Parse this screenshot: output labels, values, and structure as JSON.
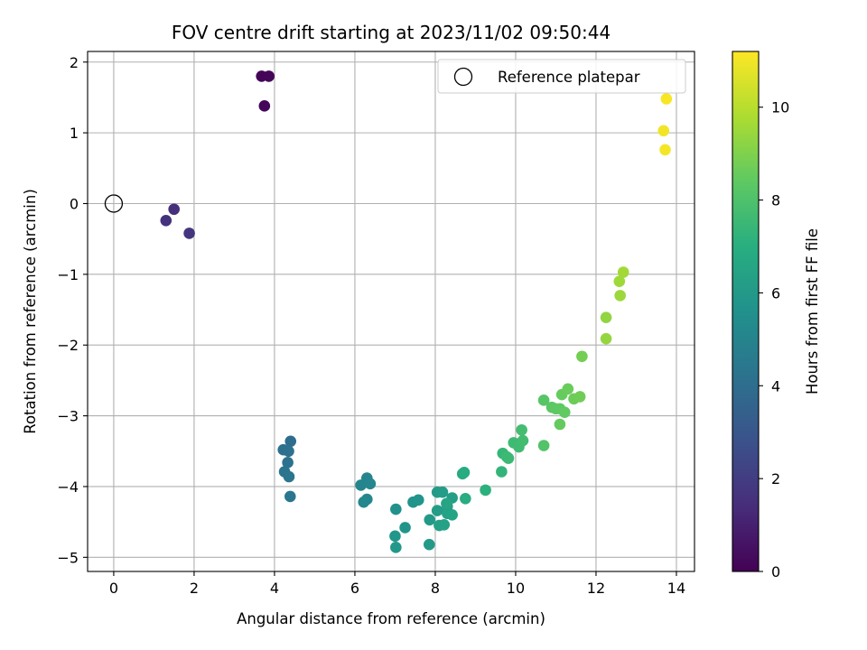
{
  "chart_data": {
    "type": "scatter",
    "title": "FOV centre drift starting at 2023/11/02 09:50:44",
    "xlabel": "Angular distance from reference (arcmin)",
    "ylabel": "Rotation from reference (arcmin)",
    "xlim": [
      -0.65,
      14.45
    ],
    "ylim": [
      -5.2,
      2.15
    ],
    "xticks": [
      0,
      2,
      4,
      6,
      8,
      10,
      12,
      14
    ],
    "yticks": [
      2,
      1,
      0,
      -1,
      -2,
      -3,
      -4,
      -5
    ],
    "grid": true,
    "colorbar": {
      "label": "Hours from first FF file",
      "range": [
        0,
        11.2
      ],
      "ticks": [
        0,
        2,
        4,
        6,
        8,
        10
      ],
      "colormap": "viridis"
    },
    "legend": {
      "position": "top-right",
      "entries": [
        {
          "label": "Reference platepar",
          "marker": "hollow-circle"
        }
      ]
    },
    "reference_point": {
      "x": 0,
      "y": 0
    },
    "series": [
      {
        "points": [
          {
            "x": 3.68,
            "y": 1.8,
            "c": 0.1
          },
          {
            "x": 3.86,
            "y": 1.8,
            "c": 0.15
          },
          {
            "x": 3.75,
            "y": 1.38,
            "c": 0.2
          },
          {
            "x": 1.5,
            "y": -0.08,
            "c": 1.5
          },
          {
            "x": 1.3,
            "y": -0.24,
            "c": 1.6
          },
          {
            "x": 1.88,
            "y": -0.42,
            "c": 1.7
          },
          {
            "x": 4.4,
            "y": -3.36,
            "c": 4.0
          },
          {
            "x": 4.22,
            "y": -3.48,
            "c": 4.1
          },
          {
            "x": 4.35,
            "y": -3.5,
            "c": 4.15
          },
          {
            "x": 4.33,
            "y": -3.66,
            "c": 4.2
          },
          {
            "x": 4.25,
            "y": -3.79,
            "c": 4.3
          },
          {
            "x": 4.36,
            "y": -3.86,
            "c": 4.35
          },
          {
            "x": 4.39,
            "y": -4.14,
            "c": 4.4
          },
          {
            "x": 6.3,
            "y": -3.88,
            "c": 5.0
          },
          {
            "x": 6.15,
            "y": -3.98,
            "c": 5.05
          },
          {
            "x": 6.38,
            "y": -3.96,
            "c": 5.1
          },
          {
            "x": 6.3,
            "y": -4.18,
            "c": 5.15
          },
          {
            "x": 6.22,
            "y": -4.22,
            "c": 5.2
          },
          {
            "x": 7.02,
            "y": -4.32,
            "c": 5.6
          },
          {
            "x": 7.45,
            "y": -4.22,
            "c": 5.7
          },
          {
            "x": 7.58,
            "y": -4.19,
            "c": 5.75
          },
          {
            "x": 7.25,
            "y": -4.58,
            "c": 5.8
          },
          {
            "x": 7.0,
            "y": -4.7,
            "c": 5.85
          },
          {
            "x": 7.02,
            "y": -4.86,
            "c": 5.9
          },
          {
            "x": 7.85,
            "y": -4.82,
            "c": 6.0
          },
          {
            "x": 7.86,
            "y": -4.47,
            "c": 6.05
          },
          {
            "x": 8.05,
            "y": -4.08,
            "c": 6.1
          },
          {
            "x": 8.18,
            "y": -4.08,
            "c": 6.12
          },
          {
            "x": 8.05,
            "y": -4.34,
            "c": 6.15
          },
          {
            "x": 8.3,
            "y": -4.28,
            "c": 6.2
          },
          {
            "x": 8.42,
            "y": -4.16,
            "c": 6.25
          },
          {
            "x": 8.1,
            "y": -4.55,
            "c": 6.3
          },
          {
            "x": 8.22,
            "y": -4.54,
            "c": 6.35
          },
          {
            "x": 8.3,
            "y": -4.38,
            "c": 6.4
          },
          {
            "x": 8.42,
            "y": -4.4,
            "c": 6.45
          },
          {
            "x": 8.28,
            "y": -4.24,
            "c": 6.5
          },
          {
            "x": 8.68,
            "y": -3.82,
            "c": 6.8
          },
          {
            "x": 8.72,
            "y": -3.8,
            "c": 6.85
          },
          {
            "x": 8.75,
            "y": -4.17,
            "c": 6.9
          },
          {
            "x": 9.25,
            "y": -4.05,
            "c": 7.1
          },
          {
            "x": 9.65,
            "y": -3.79,
            "c": 7.3
          },
          {
            "x": 9.68,
            "y": -3.53,
            "c": 7.4
          },
          {
            "x": 9.82,
            "y": -3.6,
            "c": 7.5
          },
          {
            "x": 9.78,
            "y": -3.58,
            "c": 7.55
          },
          {
            "x": 9.95,
            "y": -3.38,
            "c": 7.6
          },
          {
            "x": 10.08,
            "y": -3.44,
            "c": 7.65
          },
          {
            "x": 10.18,
            "y": -3.35,
            "c": 7.7
          },
          {
            "x": 10.15,
            "y": -3.2,
            "c": 7.75
          },
          {
            "x": 10.7,
            "y": -3.42,
            "c": 8.1
          },
          {
            "x": 10.7,
            "y": -2.78,
            "c": 8.2
          },
          {
            "x": 10.9,
            "y": -2.88,
            "c": 8.3
          },
          {
            "x": 11.0,
            "y": -2.9,
            "c": 8.35
          },
          {
            "x": 11.1,
            "y": -2.9,
            "c": 8.4
          },
          {
            "x": 11.22,
            "y": -2.95,
            "c": 8.45
          },
          {
            "x": 11.1,
            "y": -3.12,
            "c": 8.5
          },
          {
            "x": 11.15,
            "y": -2.7,
            "c": 8.55
          },
          {
            "x": 11.3,
            "y": -2.62,
            "c": 8.6
          },
          {
            "x": 11.45,
            "y": -2.76,
            "c": 8.65
          },
          {
            "x": 11.6,
            "y": -2.73,
            "c": 8.7
          },
          {
            "x": 11.65,
            "y": -2.16,
            "c": 8.8
          },
          {
            "x": 12.25,
            "y": -1.61,
            "c": 9.3
          },
          {
            "x": 12.25,
            "y": -1.91,
            "c": 9.35
          },
          {
            "x": 12.6,
            "y": -1.3,
            "c": 9.5
          },
          {
            "x": 12.58,
            "y": -1.1,
            "c": 9.55
          },
          {
            "x": 12.68,
            "y": -0.97,
            "c": 9.6
          },
          {
            "x": 13.68,
            "y": 1.03,
            "c": 11.0
          },
          {
            "x": 13.72,
            "y": 0.76,
            "c": 11.05
          },
          {
            "x": 13.75,
            "y": 1.48,
            "c": 11.1
          }
        ]
      }
    ]
  }
}
